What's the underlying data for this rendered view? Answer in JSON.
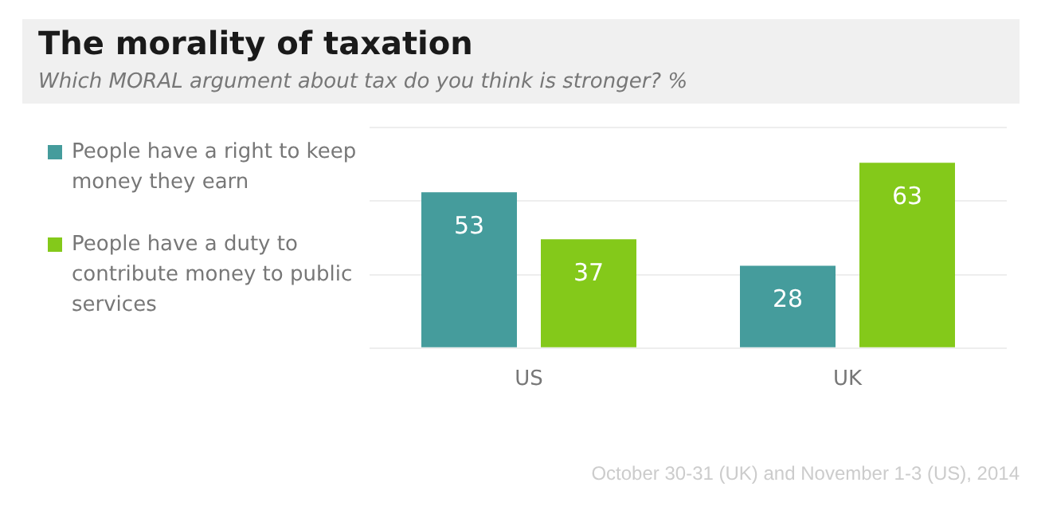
{
  "chart_data": {
    "type": "bar",
    "title": "The morality of taxation",
    "subtitle": "Which MORAL argument about tax do you think is stronger? %",
    "categories": [
      "US",
      "UK"
    ],
    "series": [
      {
        "name": "People have a right to keep money they earn",
        "color": "#459c9c",
        "values": [
          53,
          28
        ]
      },
      {
        "name": "People have a duty to contribute money to public services",
        "color": "#84c91a",
        "values": [
          37,
          63
        ]
      }
    ],
    "ylim": [
      0,
      75
    ],
    "yticks": [
      {
        "value": 0,
        "label": null
      },
      {
        "value": 25,
        "label": null
      },
      {
        "value": 50,
        "label": null
      },
      {
        "value": 75,
        "label": null
      }
    ],
    "tick_labels": "x",
    "grid": "y",
    "legend": "left",
    "data_labels": true,
    "annotations": [
      "October 30-31 (UK) and November 1-3 (US), 2014"
    ]
  }
}
